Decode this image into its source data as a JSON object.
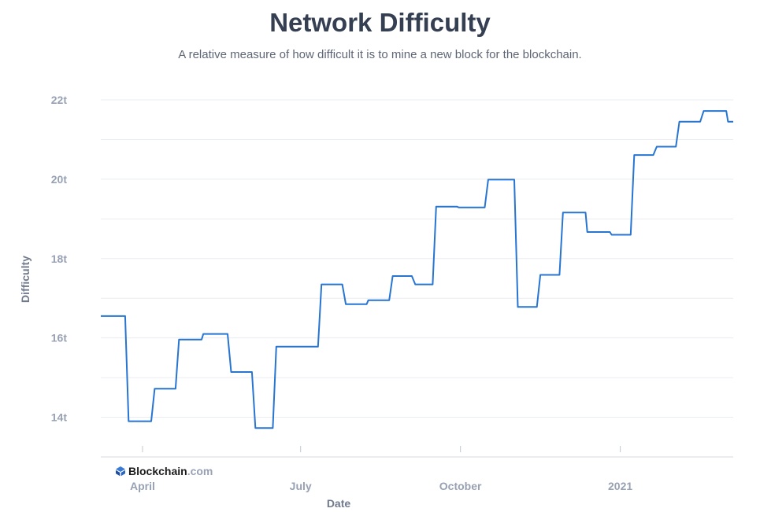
{
  "title": "Network Difficulty",
  "subtitle": "A relative measure of how difficult it is to mine a new block for the blockchain.",
  "brand": {
    "name": "Blockchain",
    "suffix": ".com"
  },
  "colors": {
    "line": "#2775d1",
    "grid": "#e9ecf1"
  },
  "chart_data": {
    "type": "line",
    "title": "Network Difficulty",
    "xlabel": "Date",
    "ylabel": "Difficulty",
    "yticks": [
      {
        "value": 14,
        "label": "14t"
      },
      {
        "value": 16,
        "label": "16t"
      },
      {
        "value": 18,
        "label": "18t"
      },
      {
        "value": 20,
        "label": "20t"
      },
      {
        "value": 22,
        "label": "22t"
      }
    ],
    "xticks": [
      {
        "date": "2020-04-01",
        "label": "April"
      },
      {
        "date": "2020-07-01",
        "label": "July"
      },
      {
        "date": "2020-10-01",
        "label": "October"
      },
      {
        "date": "2021-01-01",
        "label": "2021"
      }
    ],
    "xlim": [
      "2020-03-08",
      "2021-03-07"
    ],
    "ylim": [
      13,
      22
    ],
    "grid": true,
    "series": [
      {
        "values": [
          [
            "2020-03-08",
            16.55
          ],
          [
            "2020-03-22",
            16.55
          ],
          [
            "2020-03-24",
            13.9
          ],
          [
            "2020-04-06",
            13.9
          ],
          [
            "2020-04-08",
            14.72
          ],
          [
            "2020-04-20",
            14.72
          ],
          [
            "2020-04-22",
            15.96
          ],
          [
            "2020-05-05",
            15.96
          ],
          [
            "2020-05-06",
            16.1
          ],
          [
            "2020-05-20",
            16.1
          ],
          [
            "2020-05-22",
            15.14
          ],
          [
            "2020-06-03",
            15.14
          ],
          [
            "2020-06-05",
            13.73
          ],
          [
            "2020-06-15",
            13.73
          ],
          [
            "2020-06-17",
            15.78
          ],
          [
            "2020-07-11",
            15.78
          ],
          [
            "2020-07-13",
            17.35
          ],
          [
            "2020-07-25",
            17.35
          ],
          [
            "2020-07-27",
            16.85
          ],
          [
            "2020-08-08",
            16.85
          ],
          [
            "2020-08-09",
            16.95
          ],
          [
            "2020-08-21",
            16.95
          ],
          [
            "2020-08-23",
            17.56
          ],
          [
            "2020-09-03",
            17.56
          ],
          [
            "2020-09-05",
            17.35
          ],
          [
            "2020-09-15",
            17.35
          ],
          [
            "2020-09-17",
            19.31
          ],
          [
            "2020-09-29",
            19.31
          ],
          [
            "2020-09-30",
            19.29
          ],
          [
            "2020-10-15",
            19.29
          ],
          [
            "2020-10-17",
            19.99
          ],
          [
            "2020-11-01",
            19.99
          ],
          [
            "2020-11-03",
            16.78
          ],
          [
            "2020-11-14",
            16.78
          ],
          [
            "2020-11-16",
            17.59
          ],
          [
            "2020-11-27",
            17.59
          ],
          [
            "2020-11-29",
            19.16
          ],
          [
            "2020-12-12",
            19.16
          ],
          [
            "2020-12-13",
            18.67
          ],
          [
            "2020-12-26",
            18.67
          ],
          [
            "2020-12-27",
            18.6
          ],
          [
            "2021-01-07",
            18.6
          ],
          [
            "2021-01-09",
            20.61
          ],
          [
            "2021-01-20",
            20.61
          ],
          [
            "2021-01-22",
            20.82
          ],
          [
            "2021-02-02",
            20.82
          ],
          [
            "2021-02-04",
            21.45
          ],
          [
            "2021-02-16",
            21.45
          ],
          [
            "2021-02-18",
            21.72
          ],
          [
            "2021-03-03",
            21.72
          ],
          [
            "2021-03-04",
            21.45
          ],
          [
            "2021-03-07",
            21.45
          ]
        ]
      }
    ]
  }
}
